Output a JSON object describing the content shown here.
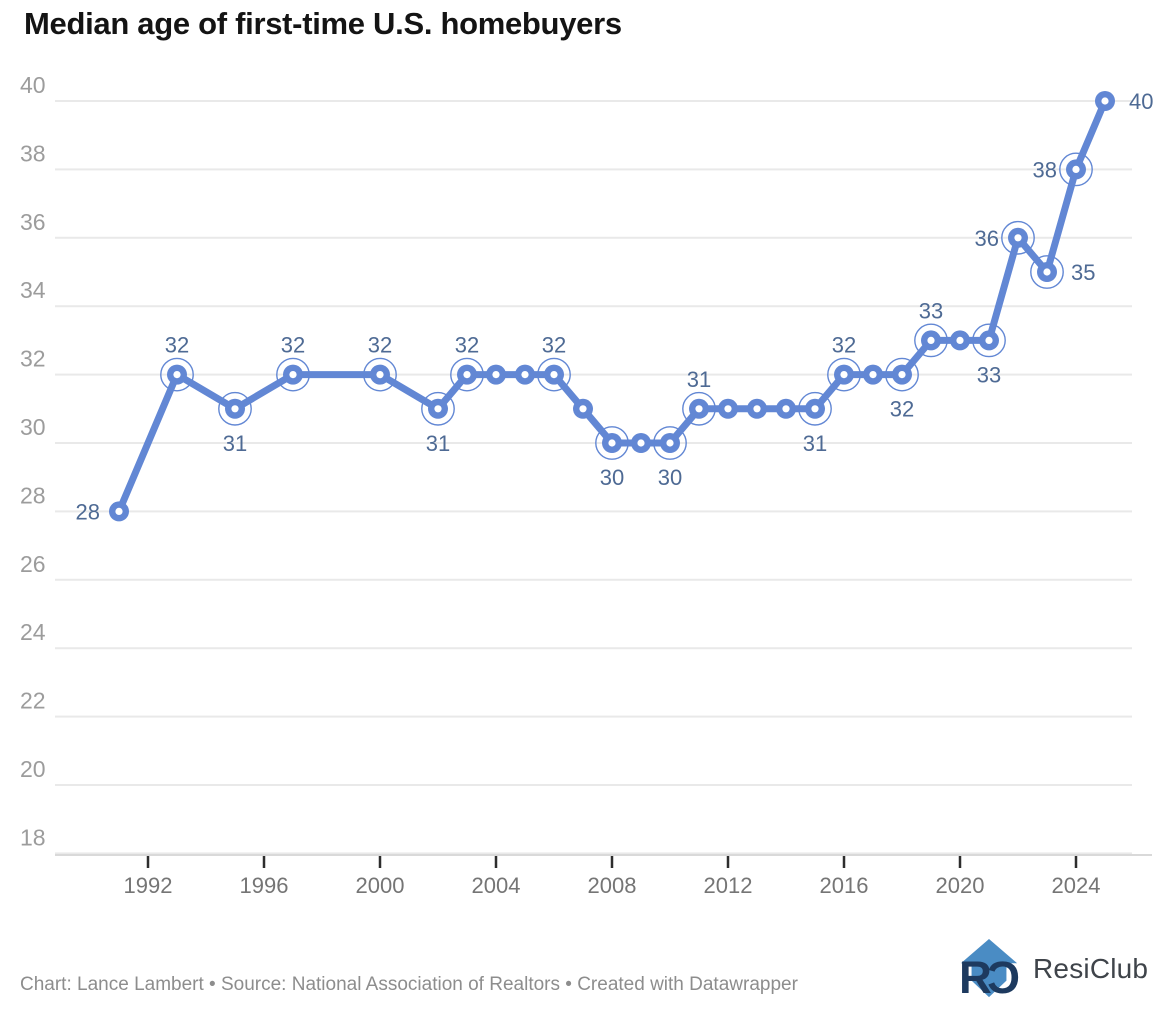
{
  "header": {
    "title": "Median age of first-time U.S. homebuyers"
  },
  "chart_data": {
    "type": "line",
    "title": "Median age of first-time U.S. homebuyers",
    "xlabel": "",
    "ylabel": "",
    "series_name": "Median age of first-time U.S. homebuyers",
    "x_ticks": [
      1992,
      1996,
      2000,
      2004,
      2008,
      2012,
      2016,
      2020,
      2024
    ],
    "y_ticks": [
      40,
      38,
      36,
      34,
      32,
      30,
      28,
      26,
      24,
      22,
      20,
      18
    ],
    "ylim": [
      18,
      40
    ],
    "xlim": [
      1990,
      2026
    ],
    "grid": "horizontal",
    "legend": false,
    "points": [
      {
        "year": 1991,
        "value": 28,
        "label": "28",
        "label_pos": "left",
        "ring": false
      },
      {
        "year": 1993,
        "value": 32,
        "label": "32",
        "label_pos": "above",
        "ring": true
      },
      {
        "year": 1995,
        "value": 31,
        "label": "31",
        "label_pos": "below",
        "ring": true
      },
      {
        "year": 1997,
        "value": 32,
        "label": "32",
        "label_pos": "above",
        "ring": true
      },
      {
        "year": 2000,
        "value": 32,
        "label": "32",
        "label_pos": "above",
        "ring": true
      },
      {
        "year": 2002,
        "value": 31,
        "label": "31",
        "label_pos": "below",
        "ring": true
      },
      {
        "year": 2003,
        "value": 32,
        "label": "32",
        "label_pos": "above",
        "ring": true
      },
      {
        "year": 2004,
        "value": 32,
        "ring": false
      },
      {
        "year": 2005,
        "value": 32,
        "ring": false
      },
      {
        "year": 2006,
        "value": 32,
        "label": "32",
        "label_pos": "above",
        "ring": true
      },
      {
        "year": 2007,
        "value": 31,
        "ring": false
      },
      {
        "year": 2008,
        "value": 30,
        "label": "30",
        "label_pos": "below",
        "ring": true
      },
      {
        "year": 2009,
        "value": 30,
        "ring": false
      },
      {
        "year": 2010,
        "value": 30,
        "label": "30",
        "label_pos": "below",
        "ring": true
      },
      {
        "year": 2011,
        "value": 31,
        "label": "31",
        "label_pos": "above",
        "ring": true
      },
      {
        "year": 2012,
        "value": 31,
        "ring": false
      },
      {
        "year": 2013,
        "value": 31,
        "ring": false
      },
      {
        "year": 2014,
        "value": 31,
        "ring": false
      },
      {
        "year": 2015,
        "value": 31,
        "label": "31",
        "label_pos": "below",
        "ring": true
      },
      {
        "year": 2016,
        "value": 32,
        "label": "32",
        "label_pos": "above",
        "ring": true
      },
      {
        "year": 2017,
        "value": 32,
        "ring": false
      },
      {
        "year": 2018,
        "value": 32,
        "label": "32",
        "label_pos": "below",
        "ring": true
      },
      {
        "year": 2019,
        "value": 33,
        "label": "33",
        "label_pos": "above",
        "ring": true
      },
      {
        "year": 2020,
        "value": 33,
        "ring": false
      },
      {
        "year": 2021,
        "value": 33,
        "label": "33",
        "label_pos": "below",
        "ring": true
      },
      {
        "year": 2022,
        "value": 36,
        "label": "36",
        "label_pos": "left",
        "ring": true
      },
      {
        "year": 2023,
        "value": 35,
        "label": "35",
        "label_pos": "right",
        "ring": true
      },
      {
        "year": 2024,
        "value": 38,
        "label": "38",
        "label_pos": "left",
        "ring": true
      },
      {
        "year": 2025,
        "value": 40,
        "label": "40",
        "label_pos": "right",
        "ring": false
      }
    ]
  },
  "colors": {
    "line": "#6287d4",
    "point_fill": "#6287d4",
    "point_center": "#ffffff",
    "point_label": "#4e6a94",
    "grid": "#e9e9e9",
    "axis_line": "#d9d9d9",
    "tick_mark": "#2d2d2d",
    "y_tick_label": "#9c9c9c",
    "x_tick_label": "#757575",
    "title": "#141414",
    "footer": "#8d8d8d",
    "logo_blue": "#4a8cc4",
    "logo_navy": "#1d3a5f",
    "logo_text": "#3f444a"
  },
  "footer": {
    "text": "Chart: Lance Lambert • Source: National Association of Realtors • Created with Datawrapper"
  },
  "logo": {
    "name": "ResiClub",
    "monogram_r": "R",
    "monogram_c": "C"
  }
}
